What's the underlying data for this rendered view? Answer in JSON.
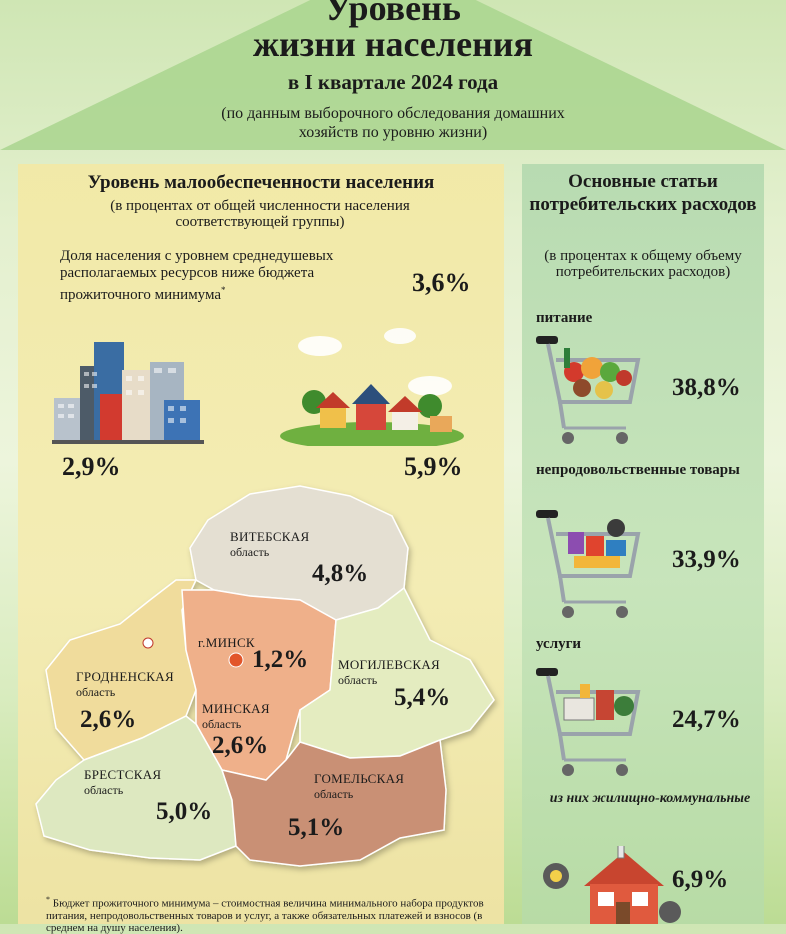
{
  "header": {
    "title_line1": "Уровень",
    "title_line2": "жизни населения",
    "period": "в I квартале 2024 года",
    "source_note": "(по данным выборочного обследования домашних хозяйств по уровню жизни)"
  },
  "poverty": {
    "title": "Уровень малообеспеченности населения",
    "subtitle": "(в процентах от общей численности населения соответствующей группы)",
    "share_text": "Доля населения с уровнем среднедушевых располагаемых ресурсов ниже бюджета прожиточного минимума",
    "share_marker": "*",
    "share_value": "3,6%",
    "urban_value": "2,9%",
    "rural_value": "5,9%"
  },
  "regions": [
    {
      "name": "ВИТЕБСКАЯ",
      "sub": "область",
      "value": "4,8%",
      "color": "#e4dfd2"
    },
    {
      "name": "г.МИНСК",
      "sub": "",
      "value": "1,2%",
      "color": "#efb08a"
    },
    {
      "name": "МОГИЛЕВСКАЯ",
      "sub": "область",
      "value": "5,4%",
      "color": "#e4ecc0"
    },
    {
      "name": "ГРОДНЕНСКАЯ",
      "sub": "область",
      "value": "2,6%",
      "color": "#f0dc9c"
    },
    {
      "name": "МИНСКАЯ",
      "sub": "область",
      "value": "2,6%",
      "color": "#efb08a"
    },
    {
      "name": "БРЕСТСКАЯ",
      "sub": "область",
      "value": "5,0%",
      "color": "#dde8c0"
    },
    {
      "name": "ГОМЕЛЬСКАЯ",
      "sub": "область",
      "value": "5,1%",
      "color": "#c99074"
    }
  ],
  "footnote": {
    "marker": "*",
    "text": "Бюджет прожиточного минимума – стоимостная величина минимального набора продуктов питания, непродовольственных товаров и услуг, а также обязательных платежей и взносов (в среднем на душу населения)."
  },
  "expenses": {
    "title": "Основные статьи потребительских расходов",
    "subtitle": "(в процентах к общему объему потребительских расходов)",
    "items": [
      {
        "label": "питание",
        "value": "38,8%"
      },
      {
        "label": "непродовольственные товары",
        "value": "33,9%"
      },
      {
        "label": "услуги",
        "value": "24,7%"
      }
    ],
    "sub_label": "из них жилищно-коммунальные",
    "sub_value": "6,9%"
  },
  "colors": {
    "roof": "#a9d58e",
    "left_panel": "#f2e9a6",
    "right_panel": "#b6dab0",
    "minsk_dot": "#e2552a"
  },
  "icons": [
    "city-buildings-icon",
    "village-houses-icon",
    "shopping-cart-icon",
    "house-utilities-icon"
  ]
}
